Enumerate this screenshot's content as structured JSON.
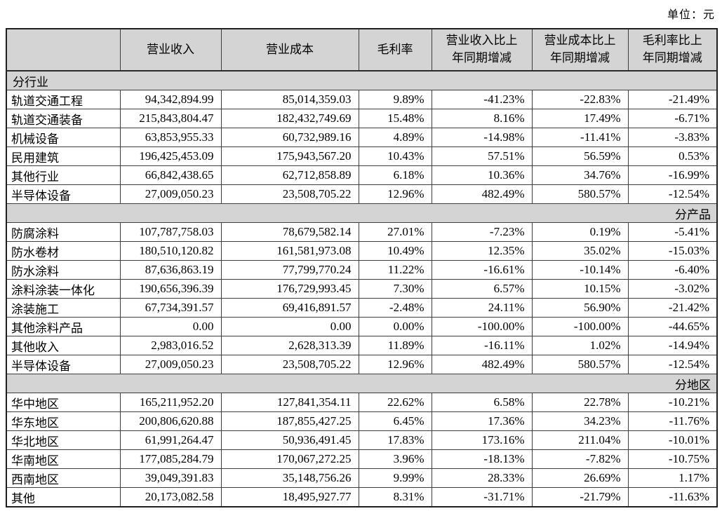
{
  "unit_label": "单位：元",
  "table": {
    "columns": [
      "",
      "营业收入",
      "营业成本",
      "毛利率",
      "营业收入比上\n年同期增减",
      "营业成本比上\n年同期增减",
      "毛利率比上\n年同期增减"
    ],
    "sections": [
      {
        "key": "by-industry",
        "title": "分行业",
        "title_align": "left",
        "rows": [
          {
            "label": "轨道交通工程",
            "revenue": "94,342,894.99",
            "cost": "85,014,359.03",
            "margin": "9.89%",
            "revenue_yoy": "-41.23%",
            "cost_yoy": "-22.83%",
            "margin_yoy": "-21.49%"
          },
          {
            "label": "轨道交通装备",
            "revenue": "215,843,804.47",
            "cost": "182,432,749.69",
            "margin": "15.48%",
            "revenue_yoy": "8.16%",
            "cost_yoy": "17.49%",
            "margin_yoy": "-6.71%"
          },
          {
            "label": "机械设备",
            "revenue": "63,853,955.33",
            "cost": "60,732,989.16",
            "margin": "4.89%",
            "revenue_yoy": "-14.98%",
            "cost_yoy": "-11.41%",
            "margin_yoy": "-3.83%"
          },
          {
            "label": "民用建筑",
            "revenue": "196,425,453.09",
            "cost": "175,943,567.20",
            "margin": "10.43%",
            "revenue_yoy": "57.51%",
            "cost_yoy": "56.59%",
            "margin_yoy": "0.53%"
          },
          {
            "label": "其他行业",
            "revenue": "66,842,438.65",
            "cost": "62,712,858.89",
            "margin": "6.18%",
            "revenue_yoy": "10.36%",
            "cost_yoy": "34.76%",
            "margin_yoy": "-16.99%"
          },
          {
            "label": "半导体设备",
            "revenue": "27,009,050.23",
            "cost": "23,508,705.22",
            "margin": "12.96%",
            "revenue_yoy": "482.49%",
            "cost_yoy": "580.57%",
            "margin_yoy": "-12.54%"
          }
        ]
      },
      {
        "key": "by-product",
        "title": "分产品",
        "title_align": "right",
        "rows": [
          {
            "label": "防腐涂料",
            "revenue": "107,787,758.03",
            "cost": "78,679,582.14",
            "margin": "27.01%",
            "revenue_yoy": "-7.23%",
            "cost_yoy": "0.19%",
            "margin_yoy": "-5.41%"
          },
          {
            "label": "防水卷材",
            "revenue": "180,510,120.82",
            "cost": "161,581,973.08",
            "margin": "10.49%",
            "revenue_yoy": "12.35%",
            "cost_yoy": "35.02%",
            "margin_yoy": "-15.03%"
          },
          {
            "label": "防水涂料",
            "revenue": "87,636,863.19",
            "cost": "77,799,770.24",
            "margin": "11.22%",
            "revenue_yoy": "-16.61%",
            "cost_yoy": "-10.14%",
            "margin_yoy": "-6.40%"
          },
          {
            "label": "涂料涂装一体化",
            "revenue": "190,656,396.39",
            "cost": "176,729,993.45",
            "margin": "7.30%",
            "revenue_yoy": "6.57%",
            "cost_yoy": "10.15%",
            "margin_yoy": "-3.02%"
          },
          {
            "label": "涂装施工",
            "revenue": "67,734,391.57",
            "cost": "69,416,891.57",
            "margin": "-2.48%",
            "revenue_yoy": "24.11%",
            "cost_yoy": "56.90%",
            "margin_yoy": "-21.42%"
          },
          {
            "label": "其他涂料产品",
            "revenue": "0.00",
            "cost": "0.00",
            "margin": "0.00%",
            "revenue_yoy": "-100.00%",
            "cost_yoy": "-100.00%",
            "margin_yoy": "-44.65%"
          },
          {
            "label": "其他收入",
            "revenue": "2,983,016.52",
            "cost": "2,628,313.39",
            "margin": "11.89%",
            "revenue_yoy": "-16.11%",
            "cost_yoy": "1.02%",
            "margin_yoy": "-14.94%"
          },
          {
            "label": "半导体设备",
            "revenue": "27,009,050.23",
            "cost": "23,508,705.22",
            "margin": "12.96%",
            "revenue_yoy": "482.49%",
            "cost_yoy": "580.57%",
            "margin_yoy": "-12.54%"
          }
        ]
      },
      {
        "key": "by-region",
        "title": "分地区",
        "title_align": "right",
        "rows": [
          {
            "label": "华中地区",
            "revenue": "165,211,952.20",
            "cost": "127,841,354.11",
            "margin": "22.62%",
            "revenue_yoy": "6.58%",
            "cost_yoy": "22.78%",
            "margin_yoy": "-10.21%"
          },
          {
            "label": "华东地区",
            "revenue": "200,806,620.88",
            "cost": "187,855,427.25",
            "margin": "6.45%",
            "revenue_yoy": "17.36%",
            "cost_yoy": "34.23%",
            "margin_yoy": "-11.76%"
          },
          {
            "label": "华北地区",
            "revenue": "61,991,264.47",
            "cost": "50,936,491.45",
            "margin": "17.83%",
            "revenue_yoy": "173.16%",
            "cost_yoy": "211.04%",
            "margin_yoy": "-10.01%"
          },
          {
            "label": "华南地区",
            "revenue": "177,085,284.79",
            "cost": "170,067,272.25",
            "margin": "3.96%",
            "revenue_yoy": "-18.13%",
            "cost_yoy": "-7.82%",
            "margin_yoy": "-10.75%"
          },
          {
            "label": "西南地区",
            "revenue": "39,049,391.83",
            "cost": "35,148,756.26",
            "margin": "9.99%",
            "revenue_yoy": "28.33%",
            "cost_yoy": "26.69%",
            "margin_yoy": "1.17%"
          },
          {
            "label": "其他",
            "revenue": "20,173,082.58",
            "cost": "18,495,927.77",
            "margin": "8.31%",
            "revenue_yoy": "-31.71%",
            "cost_yoy": "-21.79%",
            "margin_yoy": "-11.63%"
          }
        ]
      }
    ]
  }
}
